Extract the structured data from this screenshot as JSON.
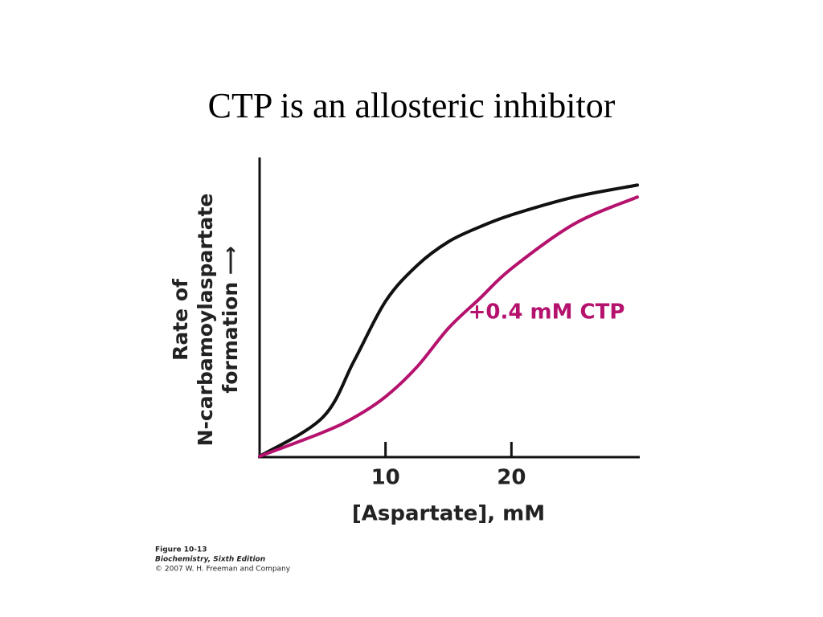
{
  "chart_data": {
    "type": "line",
    "title": "CTP is an allosteric inhibitor",
    "x_label": "[Aspartate], mM",
    "y_label": [
      "Rate of",
      "N-carbamoylaspartate",
      "formation ⟶"
    ],
    "x": [
      0,
      5,
      7.5,
      10,
      12.5,
      15,
      17.5,
      20,
      25,
      30
    ],
    "series": [
      {
        "name": null,
        "color": "#111111",
        "values": [
          0,
          13,
          32,
          52,
          64,
          72,
          77,
          81,
          87,
          91
        ]
      },
      {
        "name": "+0.4 mM CTP",
        "color": "#b5126e",
        "values": [
          0,
          8,
          13,
          20,
          30,
          43,
          53,
          63,
          78,
          87
        ]
      }
    ],
    "xlim": [
      0,
      30
    ],
    "xticks": [
      10,
      20
    ],
    "ylim": [
      0,
      100
    ],
    "grid": false,
    "source": [
      "Figure 10-13",
      "Biochemistry, Sixth Edition",
      "© 2007 W. H. Freeman and Company"
    ]
  }
}
